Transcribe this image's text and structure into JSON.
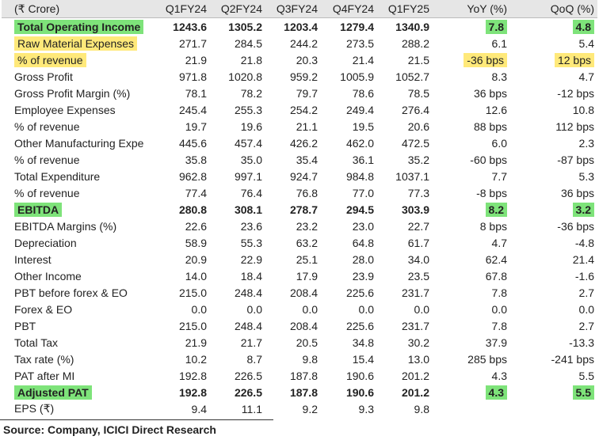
{
  "table": {
    "header": [
      "(₹ Crore)",
      "Q1FY24",
      "Q2FY24",
      "Q3FY24",
      "Q4FY24",
      "Q1FY25",
      "YoY (%)",
      "QoQ (%)"
    ],
    "rows": [
      [
        "Total Operating Income",
        "1243.6",
        "1305.2",
        "1203.4",
        "1279.4",
        "1340.9",
        "7.8",
        "4.8"
      ],
      [
        "Raw Material Expenses",
        "271.7",
        "284.5",
        "244.2",
        "273.5",
        "288.2",
        "6.1",
        "5.4"
      ],
      [
        "% of revenue",
        "21.9",
        "21.8",
        "20.3",
        "21.4",
        "21.5",
        "-36 bps",
        "12 bps"
      ],
      [
        "Gross Profit",
        "971.8",
        "1020.8",
        "959.2",
        "1005.9",
        "1052.7",
        "8.3",
        "4.7"
      ],
      [
        "Gross Profit Margin (%)",
        "78.1",
        "78.2",
        "79.7",
        "78.6",
        "78.5",
        "36 bps",
        "-12 bps"
      ],
      [
        "Employee Expenses",
        "245.4",
        "255.3",
        "254.2",
        "249.4",
        "276.4",
        "12.6",
        "10.8"
      ],
      [
        "% of revenue",
        "19.7",
        "19.6",
        "21.1",
        "19.5",
        "20.6",
        "88 bps",
        "112 bps"
      ],
      [
        "Other Manufacturing Expe",
        "445.6",
        "457.4",
        "426.2",
        "462.0",
        "472.5",
        "6.0",
        "2.3"
      ],
      [
        "% of revenue",
        "35.8",
        "35.0",
        "35.4",
        "36.1",
        "35.2",
        "-60 bps",
        "-87 bps"
      ],
      [
        "Total Expenditure",
        "962.8",
        "997.1",
        "924.7",
        "984.8",
        "1037.1",
        "7.7",
        "5.3"
      ],
      [
        "% of revenue",
        "77.4",
        "76.4",
        "76.8",
        "77.0",
        "77.3",
        "-8 bps",
        "36 bps"
      ],
      [
        "EBITDA",
        "280.8",
        "308.1",
        "278.7",
        "294.5",
        "303.9",
        "8.2",
        "3.2"
      ],
      [
        "EBITDA Margins (%)",
        "22.6",
        "23.6",
        "23.2",
        "23.0",
        "22.7",
        "8 bps",
        "-36 bps"
      ],
      [
        "Depreciation",
        "58.9",
        "55.3",
        "63.2",
        "64.8",
        "61.7",
        "4.7",
        "-4.8"
      ],
      [
        "Interest",
        "20.9",
        "22.9",
        "25.1",
        "28.0",
        "34.0",
        "62.4",
        "21.4"
      ],
      [
        "Other Income",
        "14.0",
        "18.4",
        "17.9",
        "23.9",
        "23.5",
        "67.8",
        "-1.6"
      ],
      [
        "PBT before forex & EO",
        "215.0",
        "248.4",
        "208.4",
        "225.6",
        "231.7",
        "7.8",
        "2.7"
      ],
      [
        "Forex & EO",
        "0.0",
        "0.0",
        "0.0",
        "0.0",
        "0.0",
        "0.0",
        "0.0"
      ],
      [
        "PBT",
        "215.0",
        "248.4",
        "208.4",
        "225.6",
        "231.7",
        "7.8",
        "2.7"
      ],
      [
        "Total Tax",
        "21.9",
        "21.7",
        "20.5",
        "34.8",
        "30.2",
        "37.9",
        "-13.3"
      ],
      [
        "Tax rate (%)",
        "10.2",
        "8.7",
        "9.8",
        "15.4",
        "13.0",
        "285 bps",
        "-241 bps"
      ],
      [
        "PAT after MI",
        "192.8",
        "226.5",
        "187.8",
        "190.6",
        "201.2",
        "4.3",
        "5.5"
      ],
      [
        "Adjusted PAT",
        "192.8",
        "226.5",
        "187.8",
        "190.6",
        "201.2",
        "4.3",
        "5.5"
      ],
      [
        "EPS (₹)",
        "9.4",
        "11.1",
        "9.2",
        "9.3",
        "9.8"
      ]
    ]
  },
  "source": "Source: Company, ICICI Direct Research"
}
